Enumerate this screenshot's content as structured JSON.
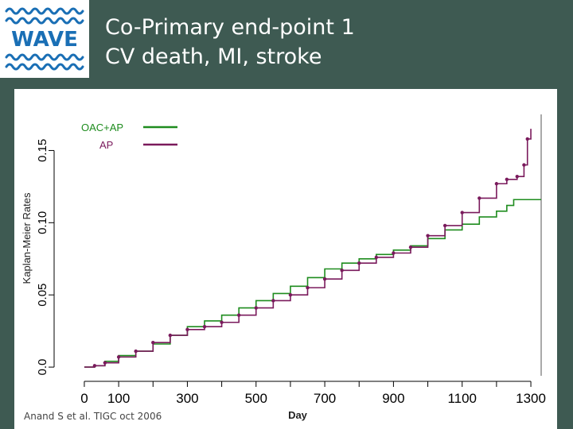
{
  "slide": {
    "title_line1": "Co-Primary end-point 1",
    "title_line2": "CV death, MI, stroke",
    "citation": "Anand S et al. TIGC oct 2006"
  },
  "logo": {
    "text": "WAVE",
    "color": "#1a6fb5",
    "icon": "wave-lines-icon"
  },
  "chart_data": {
    "type": "line",
    "subtype": "kaplan-meier-step",
    "title": "",
    "xlabel": "Day",
    "ylabel": "Kaplan-Meier Rates",
    "xlim": [
      -30,
      1330
    ],
    "ylim": [
      -0.006,
      0.175
    ],
    "xticks": [
      0,
      100,
      300,
      500,
      700,
      900,
      1100,
      1300
    ],
    "yticks": [
      0.0,
      0.05,
      0.1,
      0.15
    ],
    "ytick_labels": [
      "0.0",
      "0.05",
      "0.10",
      "0.15"
    ],
    "grid": false,
    "legend_position": "top-left",
    "series": [
      {
        "name": "OAC+AP",
        "color": "#1e8c1e",
        "x": [
          0,
          30,
          60,
          100,
          150,
          200,
          250,
          300,
          350,
          400,
          450,
          500,
          550,
          600,
          650,
          700,
          750,
          800,
          850,
          900,
          950,
          1000,
          1050,
          1100,
          1150,
          1200,
          1230,
          1250,
          1330
        ],
        "y": [
          0.0,
          0.001,
          0.004,
          0.008,
          0.011,
          0.016,
          0.022,
          0.028,
          0.032,
          0.036,
          0.041,
          0.046,
          0.051,
          0.056,
          0.062,
          0.068,
          0.072,
          0.075,
          0.078,
          0.081,
          0.084,
          0.089,
          0.095,
          0.099,
          0.104,
          0.108,
          0.112,
          0.116,
          0.116
        ]
      },
      {
        "name": "AP",
        "color": "#7a1a5c",
        "x": [
          0,
          30,
          60,
          100,
          150,
          200,
          250,
          300,
          350,
          400,
          450,
          500,
          550,
          600,
          650,
          700,
          750,
          800,
          850,
          900,
          950,
          1000,
          1050,
          1100,
          1150,
          1200,
          1230,
          1260,
          1280,
          1290,
          1300
        ],
        "y": [
          0.0,
          0.001,
          0.003,
          0.007,
          0.011,
          0.017,
          0.022,
          0.026,
          0.028,
          0.031,
          0.036,
          0.041,
          0.046,
          0.05,
          0.055,
          0.061,
          0.067,
          0.072,
          0.076,
          0.079,
          0.083,
          0.091,
          0.098,
          0.107,
          0.117,
          0.127,
          0.13,
          0.132,
          0.14,
          0.158,
          0.165
        ]
      }
    ]
  }
}
